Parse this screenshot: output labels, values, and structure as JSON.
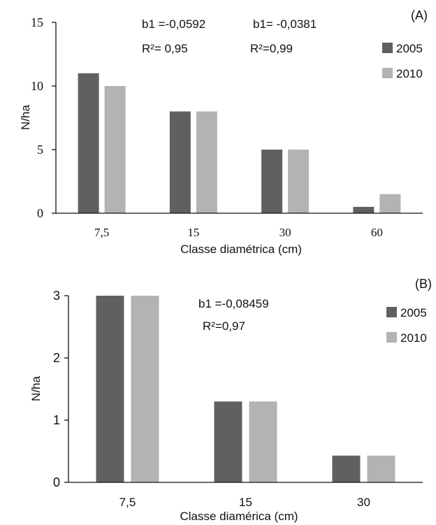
{
  "colors": {
    "series_2005": "#606060",
    "series_2010": "#b3b3b3",
    "axis": "#111111"
  },
  "chart_data": [
    {
      "type": "bar",
      "panel_label": "(A)",
      "categories": [
        "7,5",
        "15",
        "30",
        "60"
      ],
      "series": [
        {
          "name": "2005",
          "values": [
            11,
            8,
            5,
            0.5
          ]
        },
        {
          "name": "2010",
          "values": [
            10,
            8,
            5,
            1.5
          ]
        }
      ],
      "ylim": [
        0,
        15
      ],
      "yticks": [
        "0",
        "5",
        "10",
        "15"
      ],
      "ylabel": "N/ha",
      "xlabel": "Classe diamétrica (cm)",
      "grid": false,
      "legend": "top-right",
      "annotations": [
        {
          "b1": "b1 =-0,0592",
          "r2": "R²= 0,95"
        },
        {
          "b1": "b1= -0,0381",
          "r2": "R²=0,99"
        }
      ]
    },
    {
      "type": "bar",
      "panel_label": "(B)",
      "categories": [
        "7,5",
        "15",
        "30"
      ],
      "series": [
        {
          "name": "2005",
          "values": [
            3,
            1.3,
            0.43
          ]
        },
        {
          "name": "2010",
          "values": [
            3,
            1.3,
            0.43
          ]
        }
      ],
      "ylim": [
        0,
        3
      ],
      "yticks": [
        "0",
        "1",
        "2",
        "3"
      ],
      "ylabel": "N/ha",
      "xlabel": "Classe diamérica (cm)",
      "grid": false,
      "legend": "top-right",
      "annotations": [
        {
          "b1": "b1 =-0,08459",
          "r2": "R²=0,97"
        }
      ]
    }
  ]
}
